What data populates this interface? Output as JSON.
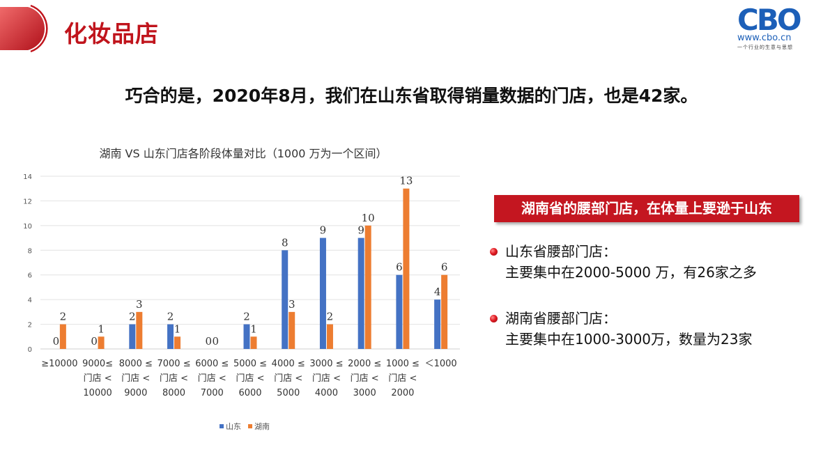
{
  "header": {
    "title": "化妆品店",
    "logo_mark": "CBO",
    "logo_url": "www.cbo.cn",
    "logo_tagline": "一个行业的生意与思想"
  },
  "headline": "巧合的是，2020年8月，我们在山东省取得销量数据的门店，也是42家。",
  "callout": "湖南省的腰部门店，在体量上要逊于山东",
  "bullets": [
    {
      "line1": "山东省腰部门店：",
      "line2": "主要集中在2000-5000 万，有26家之多"
    },
    {
      "line1": "湖南省腰部门店：",
      "line2": "主要集中在1000-3000万，数量为23家"
    }
  ],
  "colors": {
    "accent": "#c41620",
    "shandong": "#4472c4",
    "hunan": "#ed7d31"
  },
  "chart_data": {
    "type": "bar",
    "title": "湖南 VS 山东门店各阶段体量对比（1000 万为一个区间）",
    "categories": [
      [
        "≥10000"
      ],
      [
        "9000≤",
        "门店 <",
        "10000"
      ],
      [
        "8000 ≤",
        "门店 <",
        "9000"
      ],
      [
        "7000 ≤",
        "门店 <",
        "8000"
      ],
      [
        "6000 ≤",
        "门店 <",
        "7000"
      ],
      [
        "5000 ≤",
        "门店 <",
        "6000"
      ],
      [
        "4000 ≤",
        "门店 <",
        "5000"
      ],
      [
        "3000 ≤",
        "门店 <",
        "4000"
      ],
      [
        "2000 ≤",
        "门店 <",
        "3000"
      ],
      [
        "1000 ≤",
        "门店 <",
        "2000"
      ],
      [
        "＜1000"
      ]
    ],
    "series": [
      {
        "name": "山东",
        "values": [
          0,
          0,
          2,
          2,
          0,
          2,
          8,
          9,
          9,
          6,
          4
        ]
      },
      {
        "name": "湖南",
        "values": [
          2,
          1,
          3,
          1,
          0,
          1,
          3,
          2,
          10,
          13,
          6
        ]
      }
    ],
    "yticks": [
      "0",
      "2",
      "4",
      "6",
      "8",
      "10",
      "12",
      "14"
    ],
    "ylim": [
      0,
      14
    ],
    "grid": true,
    "legend_position": "bottom"
  }
}
